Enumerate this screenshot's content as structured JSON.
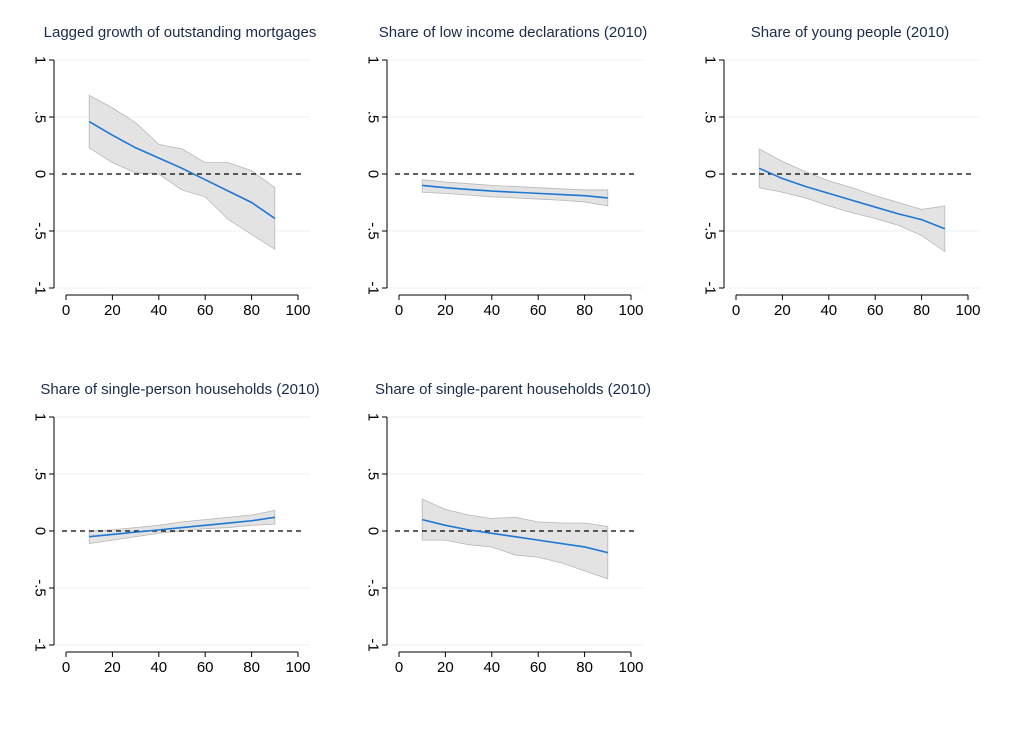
{
  "colors": {
    "line": "#1f77d4",
    "band": "#e3e3e3",
    "band_edge": "#b8b8b8",
    "zero_line": "#000000",
    "grid": "#eaf0f5",
    "title": "#1a2b4c"
  },
  "chart_data": [
    {
      "type": "line",
      "title": "Lagged growth of outstanding mortgages",
      "x": [
        10,
        20,
        30,
        40,
        50,
        60,
        70,
        80,
        90
      ],
      "series": [
        {
          "values": [
            0.46,
            0.34,
            0.23,
            0.14,
            0.05,
            -0.05,
            -0.15,
            -0.25,
            -0.39
          ]
        }
      ],
      "ci_lower": [
        0.23,
        0.1,
        0.01,
        0.0,
        -0.14,
        -0.2,
        -0.4,
        -0.53,
        -0.66
      ],
      "ci_upper": [
        0.69,
        0.58,
        0.45,
        0.26,
        0.22,
        0.1,
        0.1,
        0.03,
        -0.12
      ],
      "xlim": [
        0,
        100
      ],
      "ylim": [
        -1,
        1
      ],
      "xticks": [
        "0",
        "20",
        "40",
        "60",
        "80",
        "100"
      ],
      "yticks": [
        "-1",
        "-.5",
        "0",
        ".5",
        "1"
      ],
      "reference_line": 0,
      "grid": true
    },
    {
      "type": "line",
      "title": "Share of low income declarations (2010)",
      "x": [
        10,
        20,
        30,
        40,
        50,
        60,
        70,
        80,
        90
      ],
      "series": [
        {
          "values": [
            -0.1,
            -0.12,
            -0.135,
            -0.15,
            -0.16,
            -0.17,
            -0.18,
            -0.19,
            -0.21
          ]
        }
      ],
      "ci_lower": [
        -0.16,
        -0.17,
        -0.185,
        -0.2,
        -0.21,
        -0.22,
        -0.23,
        -0.245,
        -0.28
      ],
      "ci_upper": [
        -0.05,
        -0.07,
        -0.085,
        -0.1,
        -0.11,
        -0.12,
        -0.13,
        -0.14,
        -0.14
      ],
      "xlim": [
        0,
        100
      ],
      "ylim": [
        -1,
        1
      ],
      "xticks": [
        "0",
        "20",
        "40",
        "60",
        "80",
        "100"
      ],
      "yticks": [
        "-1",
        "-.5",
        "0",
        ".5",
        "1"
      ],
      "reference_line": 0,
      "grid": true
    },
    {
      "type": "line",
      "title": "Share of young people (2010)",
      "x": [
        10,
        20,
        30,
        40,
        50,
        60,
        70,
        80,
        90
      ],
      "series": [
        {
          "values": [
            0.05,
            -0.04,
            -0.11,
            -0.17,
            -0.23,
            -0.29,
            -0.35,
            -0.4,
            -0.48
          ]
        }
      ],
      "ci_lower": [
        -0.12,
        -0.16,
        -0.21,
        -0.28,
        -0.34,
        -0.39,
        -0.45,
        -0.54,
        -0.68
      ],
      "ci_upper": [
        0.22,
        0.11,
        0.02,
        -0.06,
        -0.12,
        -0.19,
        -0.25,
        -0.31,
        -0.28
      ],
      "xlim": [
        0,
        100
      ],
      "ylim": [
        -1,
        1
      ],
      "xticks": [
        "0",
        "20",
        "40",
        "60",
        "80",
        "100"
      ],
      "yticks": [
        "-1",
        "-.5",
        "0",
        ".5",
        "1"
      ],
      "reference_line": 0,
      "grid": true
    },
    {
      "type": "line",
      "title": "Share of single-person households (2010)",
      "x": [
        10,
        20,
        30,
        40,
        50,
        60,
        70,
        80,
        90
      ],
      "series": [
        {
          "values": [
            -0.05,
            -0.03,
            -0.01,
            0.01,
            0.03,
            0.05,
            0.07,
            0.09,
            0.12
          ]
        }
      ],
      "ci_lower": [
        -0.11,
        -0.08,
        -0.05,
        -0.02,
        0.0,
        0.02,
        0.03,
        0.05,
        0.06
      ],
      "ci_upper": [
        0.0,
        0.01,
        0.03,
        0.05,
        0.08,
        0.1,
        0.12,
        0.14,
        0.18
      ],
      "xlim": [
        0,
        100
      ],
      "ylim": [
        -1,
        1
      ],
      "xticks": [
        "0",
        "20",
        "40",
        "60",
        "80",
        "100"
      ],
      "yticks": [
        "-1",
        "-.5",
        "0",
        ".5",
        "1"
      ],
      "reference_line": 0,
      "grid": true
    },
    {
      "type": "line",
      "title": "Share of single-parent households (2010)",
      "x": [
        10,
        20,
        30,
        40,
        50,
        60,
        70,
        80,
        90
      ],
      "series": [
        {
          "values": [
            0.1,
            0.05,
            0.01,
            -0.02,
            -0.05,
            -0.08,
            -0.11,
            -0.14,
            -0.19
          ]
        }
      ],
      "ci_lower": [
        -0.08,
        -0.08,
        -0.12,
        -0.14,
        -0.21,
        -0.23,
        -0.28,
        -0.35,
        -0.42
      ],
      "ci_upper": [
        0.28,
        0.19,
        0.14,
        0.11,
        0.12,
        0.08,
        0.07,
        0.07,
        0.04
      ],
      "xlim": [
        0,
        100
      ],
      "ylim": [
        -1,
        1
      ],
      "xticks": [
        "0",
        "20",
        "40",
        "60",
        "80",
        "100"
      ],
      "yticks": [
        "-1",
        "-.5",
        "0",
        ".5",
        "1"
      ],
      "reference_line": 0,
      "grid": true
    }
  ]
}
